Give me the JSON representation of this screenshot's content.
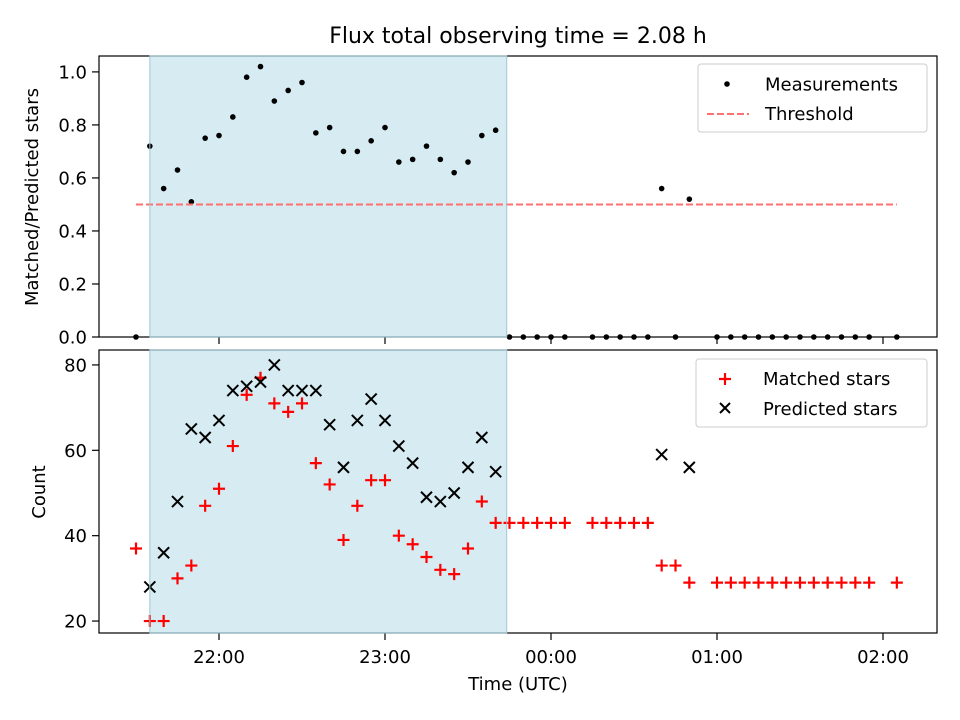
{
  "chart_data": {
    "title": "Flux total observing time = 2.08 h",
    "xlabel": "Time (UTC)",
    "x_ticks": [
      "22:00",
      "23:00",
      "00:00",
      "01:00",
      "02:00"
    ],
    "shaded_span": {
      "start": "21:35",
      "end": "23:44",
      "color": "#add8e6"
    },
    "panels": [
      {
        "type": "scatter",
        "ylabel": "Matched/Predicted stars",
        "ylim": [
          0,
          1.06
        ],
        "y_ticks": [
          "0.0",
          "0.2",
          "0.4",
          "0.6",
          "0.8",
          "1.0"
        ],
        "legend": {
          "position": "top-right",
          "entries": [
            "Measurements",
            "Threshold"
          ]
        },
        "series": [
          {
            "name": "Measurements",
            "marker": "dot",
            "color": "#000000",
            "x": [
              "21:30",
              "21:35",
              "21:40",
              "21:45",
              "21:50",
              "21:55",
              "22:00",
              "22:05",
              "22:10",
              "22:15",
              "22:20",
              "22:25",
              "22:30",
              "22:35",
              "22:40",
              "22:45",
              "22:50",
              "22:55",
              "23:00",
              "23:05",
              "23:10",
              "23:15",
              "23:20",
              "23:25",
              "23:30",
              "23:35",
              "23:40",
              "23:45",
              "23:50",
              "23:55",
              "00:00",
              "00:05",
              "00:15",
              "00:20",
              "00:25",
              "00:30",
              "00:35",
              "00:40",
              "00:45",
              "00:50",
              "01:00",
              "01:05",
              "01:10",
              "01:15",
              "01:20",
              "01:25",
              "01:30",
              "01:35",
              "01:40",
              "01:45",
              "01:50",
              "01:55",
              "02:05"
            ],
            "y": [
              0.0,
              0.72,
              0.56,
              0.63,
              0.51,
              0.75,
              0.76,
              0.83,
              0.98,
              1.02,
              0.89,
              0.93,
              0.96,
              0.77,
              0.79,
              0.7,
              0.7,
              0.74,
              0.79,
              0.66,
              0.67,
              0.72,
              0.67,
              0.62,
              0.66,
              0.76,
              0.78,
              0.0,
              0.0,
              0.0,
              0.0,
              0.0,
              0.0,
              0.0,
              0.0,
              0.0,
              0.0,
              0.56,
              0.0,
              0.52,
              0.0,
              0.0,
              0.0,
              0.0,
              0.0,
              0.0,
              0.0,
              0.0,
              0.0,
              0.0,
              0.0,
              0.0,
              0.0
            ]
          },
          {
            "name": "Threshold",
            "style": "dashed",
            "color": "#ff7070",
            "x": [
              "21:30",
              "02:05"
            ],
            "y": [
              0.5,
              0.5
            ]
          }
        ]
      },
      {
        "type": "scatter",
        "ylabel": "Count",
        "ylim": [
          17.2,
          83.5
        ],
        "y_ticks": [
          "20",
          "40",
          "60",
          "80"
        ],
        "legend": {
          "position": "top-right",
          "entries": [
            "Matched stars",
            "Predicted stars"
          ]
        },
        "series": [
          {
            "name": "Matched stars",
            "marker": "plus",
            "color": "#ff0000",
            "x": [
              "21:30",
              "21:35",
              "21:40",
              "21:45",
              "21:50",
              "21:55",
              "22:00",
              "22:05",
              "22:10",
              "22:15",
              "22:20",
              "22:25",
              "22:30",
              "22:35",
              "22:40",
              "22:45",
              "22:50",
              "22:55",
              "23:00",
              "23:05",
              "23:10",
              "23:15",
              "23:20",
              "23:25",
              "23:30",
              "23:35",
              "23:40",
              "23:45",
              "23:50",
              "23:55",
              "00:00",
              "00:05",
              "00:15",
              "00:20",
              "00:25",
              "00:30",
              "00:35",
              "00:40",
              "00:45",
              "00:50",
              "01:00",
              "01:05",
              "01:10",
              "01:15",
              "01:20",
              "01:25",
              "01:30",
              "01:35",
              "01:40",
              "01:45",
              "01:50",
              "01:55",
              "02:05"
            ],
            "y": [
              37,
              20,
              20,
              30,
              33,
              47,
              51,
              61,
              73,
              77,
              71,
              69,
              71,
              57,
              52,
              39,
              47,
              53,
              53,
              40,
              38,
              35,
              32,
              31,
              37,
              48,
              43,
              43,
              43,
              43,
              43,
              43,
              43,
              43,
              43,
              43,
              43,
              33,
              33,
              29,
              29,
              29,
              29,
              29,
              29,
              29,
              29,
              29,
              29,
              29,
              29,
              29,
              29
            ]
          },
          {
            "name": "Predicted stars",
            "marker": "x",
            "color": "#000000",
            "x": [
              "21:35",
              "21:40",
              "21:45",
              "21:50",
              "21:55",
              "22:00",
              "22:05",
              "22:10",
              "22:15",
              "22:20",
              "22:25",
              "22:30",
              "22:35",
              "22:40",
              "22:45",
              "22:50",
              "22:55",
              "23:00",
              "23:05",
              "23:10",
              "23:15",
              "23:20",
              "23:25",
              "23:30",
              "23:35",
              "23:40",
              "00:40",
              "00:50"
            ],
            "y": [
              28,
              36,
              48,
              65,
              63,
              67,
              74,
              75,
              76,
              80,
              74,
              74,
              74,
              66,
              56,
              67,
              72,
              67,
              61,
              57,
              49,
              48,
              50,
              56,
              63,
              55,
              59,
              56
            ]
          }
        ]
      }
    ]
  }
}
